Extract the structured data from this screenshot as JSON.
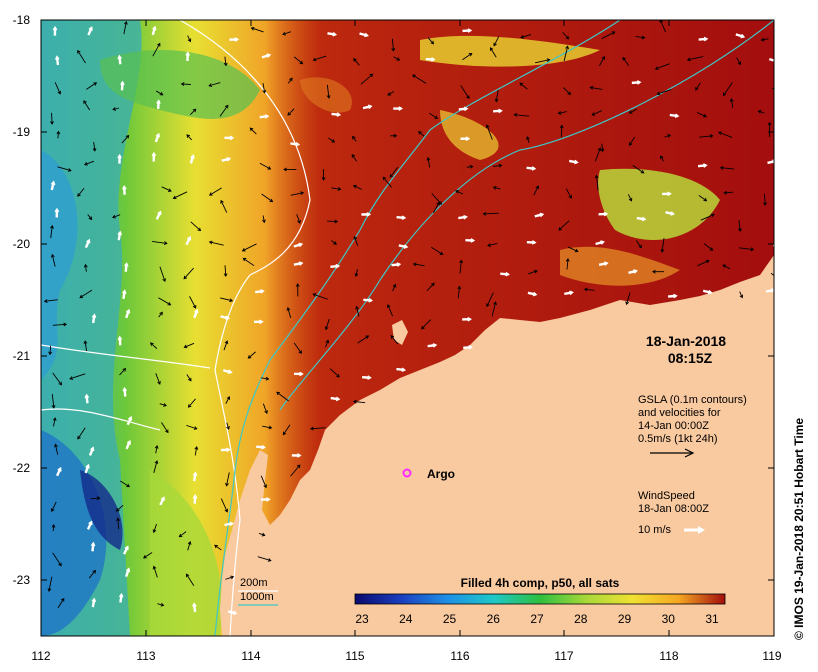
{
  "map": {
    "datetime": [
      "18-Jan-2018",
      "08:15Z"
    ],
    "gsla_block": [
      "GSLA (0.1m contours)",
      "and velocities for",
      "14-Jan 00:00Z",
      "0.5m/s (1kt 24h)"
    ],
    "wind_block": [
      "WindSpeed",
      "18-Jan 08:00Z"
    ],
    "wind_scale_label": "10 m/s",
    "argo_label": "Argo",
    "isobaths": [
      {
        "label": "200m",
        "color": "#ffffff"
      },
      {
        "label": "1000m",
        "color": "#3fc7c7"
      }
    ],
    "lon_ticks": [
      "112",
      "113",
      "114",
      "115",
      "116",
      "117",
      "118",
      "119"
    ],
    "lat_ticks": [
      "-18",
      "-19",
      "-20",
      "-21",
      "-22",
      "-23"
    ],
    "colorbar": {
      "title": "Filled 4h comp, p50, all sats",
      "ticks": [
        "23",
        "24",
        "25",
        "26",
        "27",
        "28",
        "29",
        "30",
        "31"
      ],
      "stops": [
        "#0a0a6e",
        "#1b3fbf",
        "#1e90e6",
        "#1ec8c8",
        "#2fbf3f",
        "#a8d83a",
        "#f0e232",
        "#f5a623",
        "#d94a0c",
        "#a30e0e"
      ]
    },
    "credit": "© IMOS 19-Jan-2018 20:51 Hobart Time",
    "colors": {
      "land": "#f9c9a0",
      "argo": "#ff2bff",
      "frame": "#000000",
      "arrow_wind": "#ffffff",
      "arrow_current": "#000000"
    }
  }
}
